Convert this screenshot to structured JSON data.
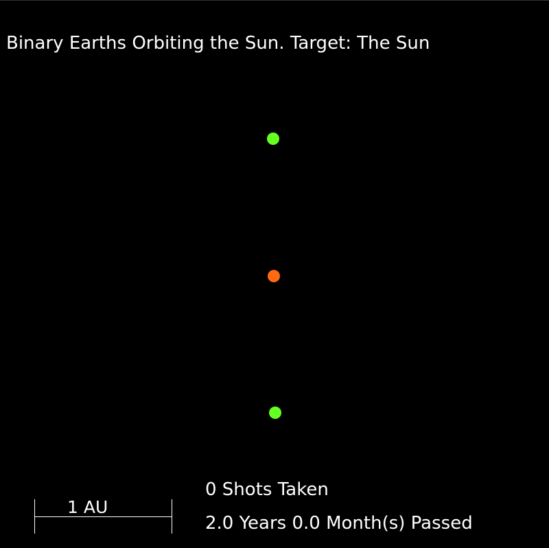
{
  "title": "Binary Earths Orbiting the Sun. Target: The Sun",
  "bodies": {
    "earth_top": {
      "name": "earth",
      "color": "#66ff22"
    },
    "sun": {
      "name": "sun",
      "color": "#ff6a10"
    },
    "earth_bottom": {
      "name": "earth",
      "color": "#66ff22"
    }
  },
  "scale_bar": {
    "label": "1 AU"
  },
  "status": {
    "shots": "0 Shots Taken",
    "time": "2.0 Years 0.0 Month(s) Passed"
  }
}
